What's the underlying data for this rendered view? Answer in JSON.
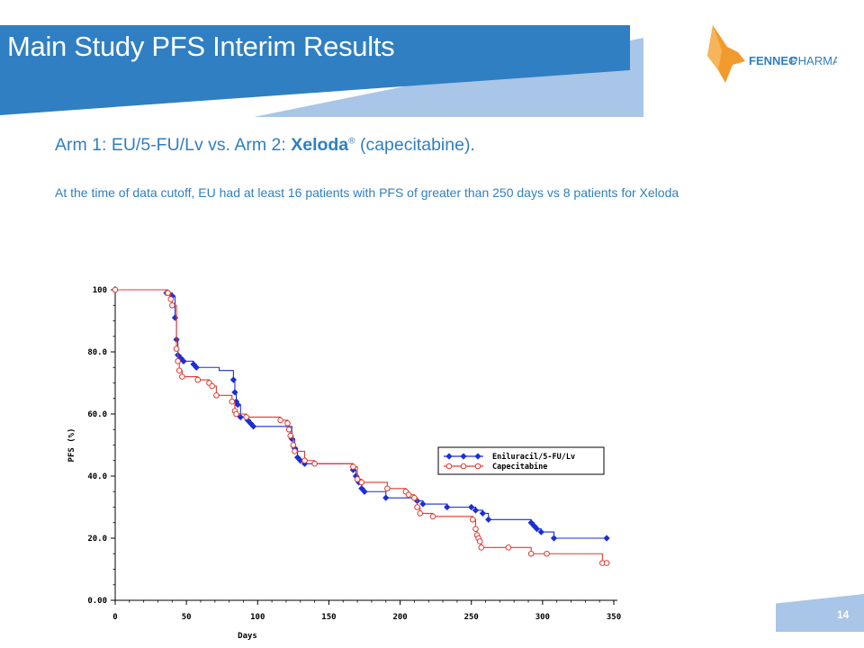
{
  "slide": {
    "title": "Main Study PFS Interim Results",
    "subtitle_pre": "Arm 1: EU/5-FU/Lv vs. Arm 2: ",
    "subtitle_bold": "Xeloda",
    "subtitle_reg": "®",
    "subtitle_post": " (capecitabine).",
    "note": "At the time of data cutoff, EU had at least 16 patients with PFS of greater than 250 days vs 8 patients for Xeloda",
    "page_number": "14",
    "logo_text_1": "FENNEC",
    "logo_text_2": " PHARMA"
  },
  "colors": {
    "brand_blue": "#2f7fc2",
    "band_light": "#a9c5e7",
    "logo_orange": "#f39a2c",
    "eu_series": "#1b2fd6",
    "cap_series": "#e03a2f"
  },
  "chart_data": {
    "type": "line",
    "xlabel": "Days",
    "ylabel": "PFS (%)",
    "xlim": [
      0,
      350
    ],
    "ylim": [
      0,
      100
    ],
    "x_ticks": [
      "0",
      "50",
      "100",
      "150",
      "200",
      "250",
      "300",
      "350"
    ],
    "y_ticks": [
      "0.00",
      "20.0",
      "40.0",
      "60.0",
      "80.0",
      "100"
    ],
    "legend_position": "right-middle",
    "series": [
      {
        "name": "Eniluracil/5-FU/Lv",
        "color": "#1b2fd6",
        "marker": "filled-diamond",
        "points": [
          [
            0,
            100
          ],
          [
            36,
            99
          ],
          [
            40,
            98
          ],
          [
            42,
            91
          ],
          [
            43,
            84
          ],
          [
            44,
            79
          ],
          [
            46,
            78
          ],
          [
            48,
            77
          ],
          [
            55,
            76
          ],
          [
            57,
            75
          ],
          [
            73,
            74
          ],
          [
            83,
            71
          ],
          [
            84,
            67
          ],
          [
            85,
            64
          ],
          [
            86,
            63
          ],
          [
            88,
            59
          ],
          [
            93,
            58
          ],
          [
            95,
            57
          ],
          [
            97,
            56
          ],
          [
            124,
            52
          ],
          [
            126,
            49
          ],
          [
            128,
            46
          ],
          [
            130,
            45
          ],
          [
            133,
            44
          ],
          [
            167,
            42
          ],
          [
            169,
            40
          ],
          [
            171,
            38
          ],
          [
            173,
            36
          ],
          [
            175,
            35
          ],
          [
            190,
            33
          ],
          [
            212,
            32
          ],
          [
            216,
            31
          ],
          [
            233,
            30
          ],
          [
            250,
            30
          ],
          [
            253,
            29
          ],
          [
            258,
            28
          ],
          [
            262,
            26
          ],
          [
            292,
            25
          ],
          [
            294,
            24
          ],
          [
            296,
            23
          ],
          [
            299,
            22
          ],
          [
            308,
            20
          ],
          [
            345,
            20
          ]
        ],
        "markers_x": [
          36,
          40,
          42,
          43,
          44,
          46,
          48,
          55,
          57,
          83,
          84,
          85,
          86,
          88,
          93,
          95,
          97,
          124,
          126,
          128,
          130,
          133,
          167,
          169,
          171,
          173,
          175,
          190,
          212,
          216,
          233,
          250,
          253,
          258,
          262,
          292,
          294,
          296,
          299,
          308,
          345
        ]
      },
      {
        "name": "Capecitabine",
        "color": "#e03a2f",
        "marker": "open-circle",
        "points": [
          [
            0,
            100
          ],
          [
            37,
            99
          ],
          [
            39,
            97
          ],
          [
            40,
            95
          ],
          [
            43,
            81
          ],
          [
            44,
            77
          ],
          [
            45,
            74
          ],
          [
            47,
            72
          ],
          [
            58,
            71
          ],
          [
            66,
            70
          ],
          [
            68,
            69
          ],
          [
            71,
            66
          ],
          [
            82,
            64
          ],
          [
            84,
            61
          ],
          [
            85,
            60
          ],
          [
            92,
            59
          ],
          [
            116,
            58
          ],
          [
            121,
            57
          ],
          [
            122,
            55
          ],
          [
            123,
            53
          ],
          [
            125,
            50
          ],
          [
            126,
            48
          ],
          [
            133,
            45
          ],
          [
            140,
            44
          ],
          [
            167,
            43
          ],
          [
            170,
            39
          ],
          [
            173,
            38
          ],
          [
            191,
            36
          ],
          [
            204,
            35
          ],
          [
            206,
            34
          ],
          [
            210,
            33
          ],
          [
            212,
            30
          ],
          [
            214,
            28
          ],
          [
            223,
            27
          ],
          [
            251,
            26
          ],
          [
            253,
            23
          ],
          [
            254,
            21
          ],
          [
            255,
            20
          ],
          [
            256,
            19
          ],
          [
            257,
            17
          ],
          [
            276,
            17
          ],
          [
            292,
            15
          ],
          [
            303,
            15
          ],
          [
            342,
            12
          ],
          [
            345,
            12
          ]
        ],
        "markers_x": [
          37,
          39,
          40,
          43,
          44,
          45,
          47,
          58,
          66,
          68,
          71,
          82,
          84,
          85,
          92,
          116,
          121,
          122,
          123,
          125,
          126,
          133,
          140,
          167,
          170,
          173,
          191,
          204,
          206,
          210,
          212,
          214,
          223,
          251,
          253,
          254,
          255,
          256,
          257,
          276,
          292,
          303,
          342,
          345
        ]
      }
    ]
  }
}
